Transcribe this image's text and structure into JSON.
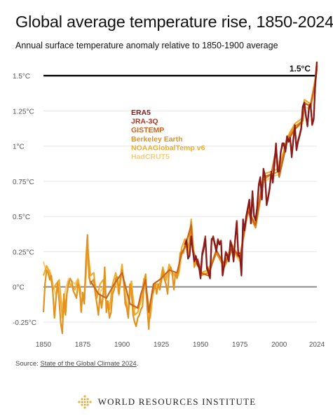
{
  "title": "Global average temperature rise, 1850-2024",
  "subtitle": "Annual surface temperature anomaly relative to 1850-1900 average",
  "source": {
    "prefix": "Source: ",
    "link": "State of the Global Climate 2024",
    "suffix": "."
  },
  "brand": "WORLD RESOURCES INSTITUTE",
  "colors": {
    "threshold_line": "#000000",
    "zero_line": "#8a8a8a",
    "grid": "#e6e6e6"
  },
  "chart_data": {
    "type": "line",
    "xlim": [
      1850,
      2024
    ],
    "ylim": [
      -0.35,
      1.6
    ],
    "x_ticks": [
      1850,
      1875,
      1900,
      1925,
      1950,
      1975,
      2000,
      2024
    ],
    "x_tick_labels": [
      "1850",
      "1875",
      "1900",
      "1925",
      "1950",
      "1975",
      "2000",
      "2024"
    ],
    "y_ticks": [
      -0.25,
      0,
      0.25,
      0.5,
      0.75,
      1,
      1.25,
      1.5
    ],
    "y_tick_labels": [
      "-0.25°C",
      "0°C",
      "0.25°C",
      "0.5°C",
      "0.75°C",
      "1°C",
      "1.25°C",
      "1.5°C"
    ],
    "grid": true,
    "legend": "upper-left (inside plot)",
    "annotations": [
      {
        "text": "1.5°C",
        "y": 1.5
      }
    ],
    "reference_lines": [
      {
        "y": 1.5
      },
      {
        "y": 0
      }
    ],
    "series": [
      {
        "name": "ERA5",
        "color": "#8b1a1a",
        "x": [
          1940,
          1941,
          1942,
          1943,
          1944,
          1945,
          1946,
          1947,
          1948,
          1949,
          1950,
          1951,
          1952,
          1953,
          1954,
          1955,
          1956,
          1957,
          1958,
          1959,
          1960,
          1961,
          1962,
          1963,
          1964,
          1965,
          1966,
          1967,
          1968,
          1969,
          1970,
          1971,
          1972,
          1973,
          1974,
          1975,
          1976,
          1977,
          1978,
          1979,
          1980,
          1981,
          1982,
          1983,
          1984,
          1985,
          1986,
          1987,
          1988,
          1989,
          1990,
          1991,
          1992,
          1993,
          1994,
          1995,
          1996,
          1997,
          1998,
          1999,
          2000,
          2001,
          2002,
          2003,
          2004,
          2005,
          2006,
          2007,
          2008,
          2009,
          2010,
          2011,
          2012,
          2013,
          2014,
          2015,
          2016,
          2017,
          2018,
          2019,
          2020,
          2021,
          2022,
          2023,
          2024
        ],
        "y": [
          0.3,
          0.33,
          0.2,
          0.22,
          0.36,
          0.26,
          0.18,
          0.22,
          0.16,
          0.14,
          0.06,
          0.22,
          0.27,
          0.34,
          0.13,
          0.1,
          0.06,
          0.34,
          0.35,
          0.3,
          0.25,
          0.33,
          0.3,
          0.32,
          0.08,
          0.15,
          0.24,
          0.22,
          0.18,
          0.32,
          0.28,
          0.18,
          0.33,
          0.46,
          0.22,
          0.22,
          0.08,
          0.48,
          0.4,
          0.5,
          0.56,
          0.62,
          0.45,
          0.68,
          0.51,
          0.47,
          0.57,
          0.73,
          0.78,
          0.62,
          0.84,
          0.79,
          0.58,
          0.63,
          0.7,
          0.82,
          0.74,
          0.88,
          1.02,
          0.82,
          0.82,
          0.95,
          1.02,
          1.02,
          0.96,
          1.07,
          1.03,
          1.06,
          0.92,
          1.04,
          1.15,
          0.97,
          1.03,
          1.07,
          1.12,
          1.28,
          1.31,
          1.22,
          1.14,
          1.28,
          1.3,
          1.15,
          1.19,
          1.46,
          1.6
        ]
      },
      {
        "name": "JRA-3Q",
        "color": "#a8371c",
        "x": [
          1948,
          1949,
          1950,
          1951,
          1952,
          1953,
          1954,
          1955,
          1956,
          1957,
          1958,
          1959,
          1960,
          1961,
          1962,
          1963,
          1964,
          1965,
          1966,
          1967,
          1968,
          1969,
          1970,
          1971,
          1972,
          1973,
          1974,
          1975,
          1976,
          1977,
          1978,
          1979,
          1980,
          1981,
          1982,
          1983,
          1984,
          1985,
          1986,
          1987,
          1988,
          1989,
          1990,
          1991,
          1992,
          1993,
          1994,
          1995,
          1996,
          1997,
          1998,
          1999,
          2000,
          2001,
          2002,
          2003,
          2004,
          2005,
          2006,
          2007,
          2008,
          2009,
          2010,
          2011,
          2012,
          2013,
          2014,
          2015,
          2016,
          2017,
          2018,
          2019,
          2020,
          2021,
          2022,
          2023,
          2024
        ],
        "y": [
          0.2,
          0.16,
          0.1,
          0.24,
          0.29,
          0.36,
          0.15,
          0.12,
          0.08,
          0.32,
          0.36,
          0.31,
          0.27,
          0.34,
          0.31,
          0.33,
          0.1,
          0.16,
          0.25,
          0.23,
          0.2,
          0.33,
          0.29,
          0.19,
          0.34,
          0.47,
          0.24,
          0.24,
          0.1,
          0.47,
          0.41,
          0.49,
          0.55,
          0.6,
          0.47,
          0.66,
          0.5,
          0.48,
          0.56,
          0.71,
          0.76,
          0.63,
          0.82,
          0.78,
          0.6,
          0.64,
          0.71,
          0.81,
          0.75,
          0.86,
          1.0,
          0.84,
          0.83,
          0.96,
          1.0,
          1.01,
          0.97,
          1.06,
          1.04,
          1.05,
          0.94,
          1.05,
          1.13,
          0.99,
          1.04,
          1.08,
          1.13,
          1.26,
          1.3,
          1.21,
          1.15,
          1.27,
          1.29,
          1.16,
          1.2,
          1.44,
          1.57
        ]
      },
      {
        "name": "GISTEMP",
        "color": "#c8651b",
        "x": [
          1880,
          1885,
          1890,
          1895,
          1900,
          1905,
          1910,
          1912,
          1915,
          1917,
          1920,
          1925,
          1930,
          1935,
          1938,
          1940,
          1944,
          1945,
          1950,
          1955,
          1960,
          1965,
          1970,
          1975,
          1980,
          1985,
          1990,
          1995,
          1998,
          2000,
          2005,
          2010,
          2015,
          2016,
          2020,
          2023,
          2024
        ],
        "y": [
          0.04,
          -0.05,
          -0.08,
          0.02,
          0.1,
          -0.12,
          -0.15,
          -0.05,
          0.05,
          -0.18,
          0.02,
          0.06,
          0.12,
          0.1,
          0.24,
          0.28,
          0.44,
          0.27,
          0.1,
          0.08,
          0.26,
          0.16,
          0.28,
          0.21,
          0.54,
          0.44,
          0.78,
          0.8,
          0.98,
          0.78,
          1.03,
          1.12,
          1.18,
          1.3,
          1.29,
          1.45,
          1.55
        ]
      },
      {
        "name": "Berkeley Earth",
        "color": "#e3921e",
        "x": [
          1850,
          1851,
          1852,
          1853,
          1854,
          1855,
          1856,
          1857,
          1858,
          1859,
          1860,
          1861,
          1862,
          1863,
          1864,
          1865,
          1866,
          1867,
          1868,
          1869,
          1870,
          1871,
          1872,
          1873,
          1874,
          1875,
          1876,
          1877,
          1878,
          1879,
          1880,
          1881,
          1882,
          1883,
          1884,
          1885,
          1886,
          1887,
          1888,
          1889,
          1890,
          1891,
          1892,
          1893,
          1894,
          1895,
          1896,
          1897,
          1898,
          1899,
          1900,
          1901,
          1902,
          1903,
          1904,
          1905,
          1906,
          1907,
          1908,
          1909,
          1910,
          1911,
          1912,
          1913,
          1914,
          1915,
          1916,
          1917,
          1918,
          1919,
          1920,
          1921,
          1922,
          1923,
          1924,
          1925,
          1926,
          1927,
          1928,
          1929,
          1930,
          1931,
          1932,
          1933,
          1934,
          1935,
          1936,
          1937,
          1938,
          1939,
          1940,
          1941,
          1942,
          1943,
          1944,
          1945,
          1946,
          1947,
          1948,
          1949,
          1950,
          1955,
          1960,
          1965,
          1970,
          1975,
          1980,
          1985,
          1990,
          1995,
          2000,
          2005,
          2010,
          2015,
          2016,
          2020,
          2023,
          2024
        ],
        "y": [
          -0.18,
          0.02,
          0.12,
          0.1,
          0.05,
          0.08,
          -0.04,
          -0.22,
          -0.08,
          0.03,
          -0.1,
          -0.26,
          -0.33,
          -0.05,
          -0.2,
          -0.04,
          0.02,
          0.06,
          0.04,
          -0.03,
          -0.05,
          -0.08,
          0.02,
          0.0,
          -0.18,
          -0.04,
          -0.12,
          0.18,
          0.37,
          0.07,
          0.02,
          0.04,
          0.05,
          -0.05,
          -0.12,
          -0.2,
          -0.05,
          -0.15,
          -0.06,
          0.14,
          -0.18,
          -0.1,
          -0.22,
          -0.18,
          -0.05,
          -0.02,
          0.06,
          0.07,
          -0.05,
          0.06,
          0.12,
          0.05,
          -0.12,
          -0.15,
          -0.22,
          0.02,
          -0.03,
          -0.2,
          -0.25,
          -0.28,
          -0.22,
          -0.2,
          -0.16,
          -0.14,
          0.02,
          0.09,
          -0.14,
          -0.3,
          -0.12,
          -0.05,
          -0.04,
          0.03,
          -0.05,
          0.02,
          -0.02,
          0.04,
          0.12,
          0.05,
          0.02,
          -0.05,
          0.12,
          0.14,
          0.1,
          -0.02,
          0.1,
          0.06,
          0.12,
          0.24,
          0.26,
          0.24,
          0.3,
          0.34,
          0.28,
          0.32,
          0.46,
          0.3,
          0.14,
          0.18,
          0.15,
          0.14,
          0.08,
          0.1,
          0.24,
          0.14,
          0.26,
          0.2,
          0.54,
          0.42,
          0.76,
          0.8,
          0.82,
          1.05,
          1.14,
          1.18,
          1.31,
          1.28,
          1.46,
          1.58
        ]
      },
      {
        "name": "NOAAGlobalTemp v6",
        "color": "#f0ab2a",
        "x": [
          1850,
          1852,
          1854,
          1856,
          1858,
          1860,
          1862,
          1864,
          1866,
          1868,
          1870,
          1872,
          1874,
          1876,
          1878,
          1880,
          1882,
          1884,
          1886,
          1888,
          1890,
          1892,
          1894,
          1896,
          1898,
          1900,
          1902,
          1904,
          1906,
          1908,
          1910,
          1912,
          1914,
          1916,
          1918,
          1920,
          1922,
          1924,
          1926,
          1928,
          1930,
          1932,
          1934,
          1936,
          1938,
          1940,
          1942,
          1944,
          1946,
          1948,
          1950,
          1955,
          1960,
          1965,
          1970,
          1975,
          1980,
          1985,
          1990,
          1995,
          2000,
          2005,
          2010,
          2015,
          2016,
          2020,
          2023,
          2024
        ],
        "y": [
          0.08,
          0.15,
          0.1,
          -0.02,
          0.02,
          0.05,
          -0.22,
          -0.12,
          0.04,
          0.0,
          -0.02,
          0.05,
          -0.12,
          -0.06,
          0.28,
          0.08,
          0.1,
          -0.08,
          0.02,
          0.05,
          -0.12,
          -0.16,
          0.02,
          0.1,
          -0.02,
          0.16,
          -0.08,
          -0.18,
          0.04,
          -0.2,
          -0.18,
          -0.1,
          0.06,
          -0.1,
          -0.22,
          0.0,
          0.02,
          0.02,
          0.14,
          0.05,
          0.16,
          0.1,
          0.08,
          0.1,
          0.28,
          0.34,
          0.24,
          0.48,
          0.2,
          0.18,
          0.1,
          0.12,
          0.26,
          0.16,
          0.3,
          0.2,
          0.56,
          0.44,
          0.8,
          0.82,
          0.84,
          1.06,
          1.16,
          1.2,
          1.33,
          1.3,
          1.48,
          1.6
        ]
      },
      {
        "name": "HadCRUT5",
        "color": "#f6cd7c",
        "x": [
          1850,
          1852,
          1854,
          1856,
          1858,
          1860,
          1862,
          1864,
          1866,
          1868,
          1870,
          1872,
          1874,
          1876,
          1878,
          1880,
          1882,
          1884,
          1886,
          1888,
          1890,
          1892,
          1894,
          1896,
          1898,
          1900,
          1902,
          1904,
          1906,
          1908,
          1910,
          1912,
          1914,
          1916,
          1918,
          1920,
          1922,
          1924,
          1926,
          1928,
          1930,
          1932,
          1934,
          1936,
          1938,
          1940,
          1942,
          1944,
          1946,
          1948,
          1950,
          1955,
          1960,
          1965,
          1970,
          1975,
          1980,
          1985,
          1990,
          1995,
          2000,
          2005,
          2010,
          2015,
          2016,
          2020,
          2023,
          2024
        ],
        "y": [
          0.18,
          0.1,
          0.12,
          0.02,
          -0.06,
          0.02,
          -0.15,
          -0.02,
          0.06,
          0.04,
          0.02,
          0.06,
          -0.04,
          -0.08,
          0.22,
          0.02,
          0.06,
          -0.06,
          -0.04,
          0.0,
          -0.1,
          -0.14,
          -0.04,
          0.05,
          -0.06,
          0.1,
          -0.04,
          -0.14,
          0.02,
          -0.16,
          -0.14,
          -0.08,
          0.04,
          -0.06,
          -0.18,
          -0.02,
          0.0,
          0.0,
          0.1,
          0.04,
          0.12,
          0.08,
          0.08,
          0.08,
          0.22,
          0.3,
          0.22,
          0.4,
          0.2,
          0.16,
          0.1,
          0.1,
          0.24,
          0.14,
          0.26,
          0.18,
          0.52,
          0.42,
          0.74,
          0.78,
          0.8,
          1.02,
          1.12,
          1.16,
          1.28,
          1.26,
          1.44,
          1.54
        ]
      }
    ]
  }
}
